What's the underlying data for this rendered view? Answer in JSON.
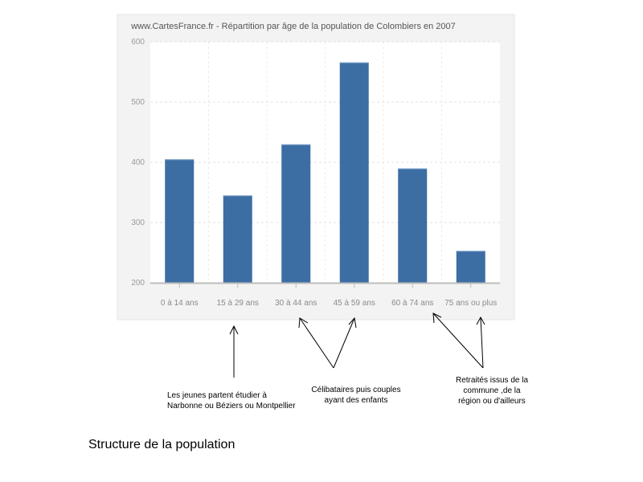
{
  "chart_data": {
    "type": "bar",
    "title": "www.CartesFrance.fr - Répartition par âge de la population de Colombiers en 2007",
    "categories": [
      "0 à 14 ans",
      "15 à 29 ans",
      "30 à 44 ans",
      "45 à 59 ans",
      "60 à 74 ans",
      "75 ans ou plus"
    ],
    "values": [
      405,
      345,
      430,
      566,
      390,
      253
    ],
    "ylim": [
      200,
      600
    ],
    "yticks": [
      "200",
      "300",
      "400",
      "500",
      "600"
    ],
    "xlabel": "",
    "ylabel": "",
    "grid": true,
    "bar_color": "#3c6ea4",
    "frame_color": "#f3f3f3"
  },
  "annotations": {
    "jeunes": "Les jeunes partent étudier à Narbonne ou Béziers ou Montpellier",
    "celibataires": "Célibataires puis couples ayant des enfants",
    "retraites": "Retraités issus de la commune ,de la région ou d'ailleurs"
  },
  "caption": "Structure de la population"
}
